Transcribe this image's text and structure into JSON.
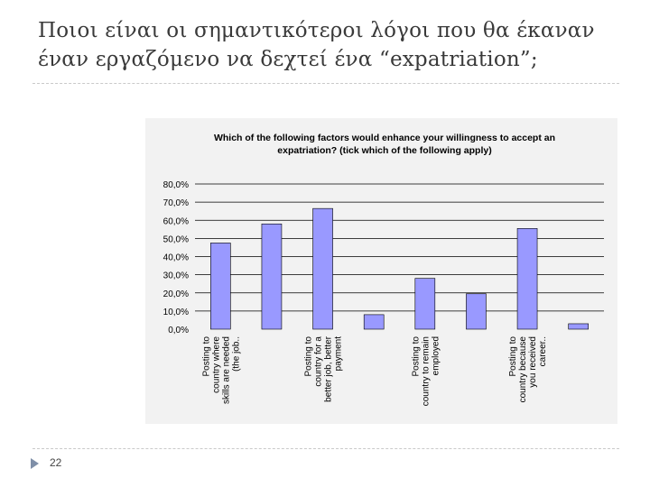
{
  "slide": {
    "title_line1": "Ποιοι είναι οι σημαντικότεροι λόγοι που θα έκαναν",
    "title_line2": "έναν εργαζόμενο να δεχτεί ένα “expatriation”;",
    "page_number": "22"
  },
  "colors": {
    "bar_fill": "#9999ff",
    "chart_background": "#f2f2f2",
    "gridline": "#000000",
    "footer_marker": "#7f8fa8"
  },
  "chart_data": {
    "type": "bar",
    "title_line1": "Which of the following factors would enhance your willingness to accept an",
    "title_line2": "expatriation? (tick which of the following apply)",
    "ylim": [
      0,
      80
    ],
    "y_tick_labels": [
      "80,0%",
      "70,0%",
      "60,0%",
      "50,0%",
      "40,0%",
      "30,0%",
      "20,0%",
      "10,0%",
      "0,0%"
    ],
    "values": [
      47.5,
      58,
      66.5,
      8,
      28,
      19.5,
      55.5,
      3
    ],
    "category_labels": [
      {
        "index": 0,
        "lines": [
          "Posting to",
          "country where",
          "skills are needed",
          "(the job.."
        ]
      },
      {
        "index": 2,
        "lines": [
          "Posting to",
          "country for a",
          "better job, better",
          "payment"
        ]
      },
      {
        "index": 4,
        "lines": [
          "Posting to",
          "country to remain",
          "employed"
        ]
      },
      {
        "index": 6,
        "lines": [
          "Posting to",
          "country because",
          "you received",
          "career.."
        ]
      }
    ],
    "legend": "none",
    "grid": true
  }
}
